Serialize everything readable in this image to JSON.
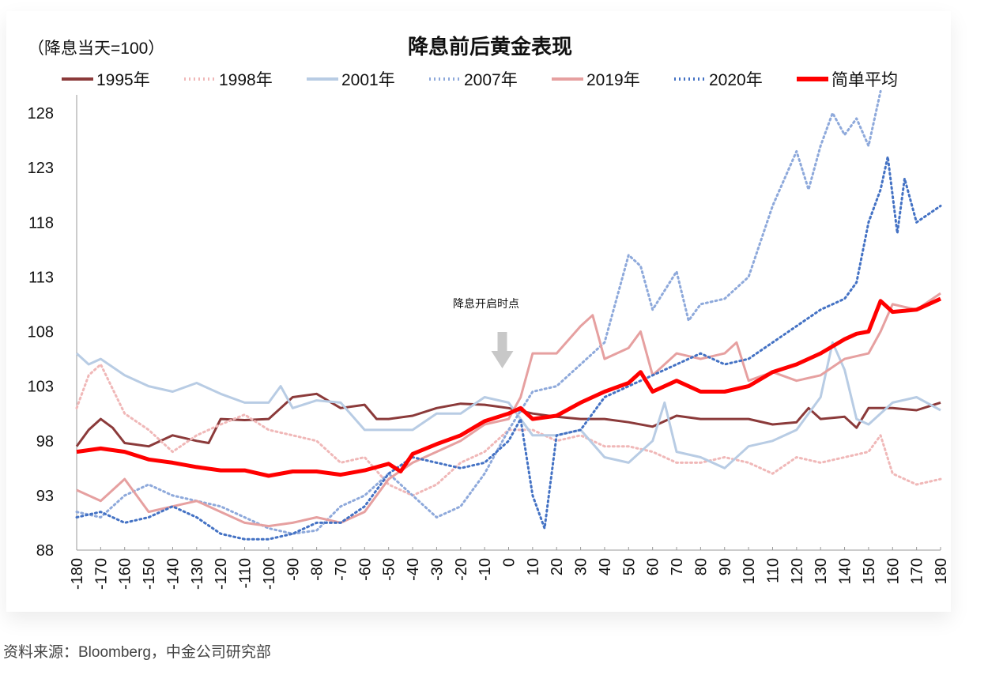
{
  "chart_data": {
    "type": "line",
    "title": "降息前后黄金表现",
    "unit_note": "（降息当天=100）",
    "annotation": "降息开启时点",
    "annotation_x": 0,
    "xlim": [
      -180,
      180
    ],
    "ylim": [
      88,
      130
    ],
    "x_ticks": [
      -180,
      -170,
      -160,
      -150,
      -140,
      -130,
      -120,
      -110,
      -100,
      -90,
      -80,
      -70,
      -60,
      -50,
      -40,
      -30,
      -20,
      -10,
      0,
      10,
      20,
      30,
      40,
      50,
      60,
      70,
      80,
      90,
      100,
      110,
      120,
      130,
      140,
      150,
      160,
      170,
      180
    ],
    "y_ticks": [
      88,
      93,
      98,
      103,
      108,
      113,
      118,
      123,
      128
    ],
    "grid": false,
    "legend_position": "top",
    "series": [
      {
        "name": "1995年",
        "color": "#8B3A3A",
        "style": "solid",
        "width": 3,
        "points": [
          [
            -180,
            97.5
          ],
          [
            -175,
            99
          ],
          [
            -170,
            100
          ],
          [
            -165,
            99.2
          ],
          [
            -160,
            97.8
          ],
          [
            -150,
            97.5
          ],
          [
            -140,
            98.5
          ],
          [
            -130,
            98
          ],
          [
            -125,
            97.8
          ],
          [
            -120,
            100
          ],
          [
            -110,
            99.9
          ],
          [
            -100,
            100
          ],
          [
            -95,
            101
          ],
          [
            -90,
            102
          ],
          [
            -80,
            102.3
          ],
          [
            -70,
            101
          ],
          [
            -60,
            101.3
          ],
          [
            -55,
            100
          ],
          [
            -50,
            100
          ],
          [
            -40,
            100.3
          ],
          [
            -30,
            101
          ],
          [
            -20,
            101.4
          ],
          [
            -10,
            101.3
          ],
          [
            0,
            101
          ],
          [
            10,
            100.5
          ],
          [
            20,
            100.2
          ],
          [
            30,
            100
          ],
          [
            40,
            100
          ],
          [
            50,
            99.7
          ],
          [
            60,
            99.3
          ],
          [
            70,
            100.3
          ],
          [
            80,
            100
          ],
          [
            90,
            100
          ],
          [
            100,
            100
          ],
          [
            110,
            99.5
          ],
          [
            120,
            99.7
          ],
          [
            125,
            101
          ],
          [
            130,
            100
          ],
          [
            140,
            100.2
          ],
          [
            145,
            99.2
          ],
          [
            150,
            101
          ],
          [
            160,
            101
          ],
          [
            170,
            100.8
          ],
          [
            180,
            101.5
          ]
        ]
      },
      {
        "name": "1998年",
        "color": "#F0B8B8",
        "style": "dotted",
        "width": 3,
        "points": [
          [
            -180,
            101
          ],
          [
            -175,
            104
          ],
          [
            -170,
            105
          ],
          [
            -160,
            100.5
          ],
          [
            -150,
            99
          ],
          [
            -140,
            97
          ],
          [
            -130,
            98.5
          ],
          [
            -120,
            99.5
          ],
          [
            -110,
            100.4
          ],
          [
            -100,
            99
          ],
          [
            -90,
            98.5
          ],
          [
            -80,
            98
          ],
          [
            -70,
            96
          ],
          [
            -60,
            96.5
          ],
          [
            -50,
            94
          ],
          [
            -40,
            93
          ],
          [
            -30,
            94
          ],
          [
            -20,
            96
          ],
          [
            -10,
            97
          ],
          [
            0,
            99
          ],
          [
            10,
            99
          ],
          [
            20,
            98
          ],
          [
            30,
            98.5
          ],
          [
            40,
            97.5
          ],
          [
            50,
            97.5
          ],
          [
            60,
            97
          ],
          [
            70,
            96
          ],
          [
            80,
            96
          ],
          [
            90,
            96.5
          ],
          [
            100,
            96
          ],
          [
            110,
            95
          ],
          [
            120,
            96.5
          ],
          [
            130,
            96
          ],
          [
            140,
            96.5
          ],
          [
            150,
            97
          ],
          [
            155,
            98.5
          ],
          [
            160,
            95
          ],
          [
            170,
            94
          ],
          [
            180,
            94.5
          ]
        ]
      },
      {
        "name": "2001年",
        "color": "#B8CCE4",
        "style": "solid",
        "width": 3,
        "points": [
          [
            -180,
            106
          ],
          [
            -175,
            105
          ],
          [
            -170,
            105.5
          ],
          [
            -160,
            104
          ],
          [
            -150,
            103
          ],
          [
            -140,
            102.5
          ],
          [
            -130,
            103.3
          ],
          [
            -120,
            102.3
          ],
          [
            -110,
            101.5
          ],
          [
            -100,
            101.5
          ],
          [
            -95,
            103
          ],
          [
            -90,
            101
          ],
          [
            -80,
            101.7
          ],
          [
            -70,
            101.5
          ],
          [
            -60,
            99
          ],
          [
            -50,
            99
          ],
          [
            -40,
            99
          ],
          [
            -30,
            100.5
          ],
          [
            -20,
            100.5
          ],
          [
            -10,
            102
          ],
          [
            0,
            101.5
          ],
          [
            10,
            98.5
          ],
          [
            20,
            98.5
          ],
          [
            30,
            99
          ],
          [
            40,
            96.5
          ],
          [
            50,
            96
          ],
          [
            60,
            98
          ],
          [
            65,
            101.5
          ],
          [
            70,
            97
          ],
          [
            80,
            96.5
          ],
          [
            90,
            95.5
          ],
          [
            100,
            97.5
          ],
          [
            110,
            98
          ],
          [
            120,
            99
          ],
          [
            130,
            102
          ],
          [
            135,
            107
          ],
          [
            140,
            104.5
          ],
          [
            145,
            100
          ],
          [
            150,
            99.5
          ],
          [
            160,
            101.5
          ],
          [
            170,
            102
          ],
          [
            180,
            100.8
          ]
        ]
      },
      {
        "name": "2007年",
        "color": "#8EA9DB",
        "style": "dotted",
        "width": 3,
        "points": [
          [
            -180,
            91.5
          ],
          [
            -170,
            91
          ],
          [
            -160,
            93
          ],
          [
            -150,
            94
          ],
          [
            -140,
            93
          ],
          [
            -130,
            92.5
          ],
          [
            -120,
            92
          ],
          [
            -110,
            91
          ],
          [
            -100,
            90
          ],
          [
            -90,
            89.5
          ],
          [
            -80,
            89.8
          ],
          [
            -70,
            92
          ],
          [
            -60,
            93
          ],
          [
            -50,
            95
          ],
          [
            -40,
            93
          ],
          [
            -30,
            91
          ],
          [
            -20,
            92
          ],
          [
            -10,
            95
          ],
          [
            0,
            99
          ],
          [
            10,
            102.5
          ],
          [
            20,
            103
          ],
          [
            30,
            105
          ],
          [
            40,
            107
          ],
          [
            50,
            115
          ],
          [
            55,
            114
          ],
          [
            60,
            110
          ],
          [
            70,
            113.5
          ],
          [
            75,
            109
          ],
          [
            80,
            110.5
          ],
          [
            90,
            111
          ],
          [
            100,
            113
          ],
          [
            110,
            119.5
          ],
          [
            120,
            124.5
          ],
          [
            125,
            121
          ],
          [
            130,
            125
          ],
          [
            135,
            128
          ],
          [
            140,
            126
          ],
          [
            145,
            127.5
          ],
          [
            150,
            125
          ],
          [
            155,
            130
          ]
        ]
      },
      {
        "name": "2019年",
        "color": "#E6A0A0",
        "style": "solid",
        "width": 3,
        "points": [
          [
            -180,
            93.5
          ],
          [
            -170,
            92.5
          ],
          [
            -160,
            94.5
          ],
          [
            -150,
            91.5
          ],
          [
            -140,
            92
          ],
          [
            -130,
            92.5
          ],
          [
            -120,
            91.5
          ],
          [
            -110,
            90.5
          ],
          [
            -100,
            90.2
          ],
          [
            -90,
            90.5
          ],
          [
            -80,
            91
          ],
          [
            -70,
            90.5
          ],
          [
            -60,
            91.5
          ],
          [
            -50,
            94.5
          ],
          [
            -40,
            96
          ],
          [
            -30,
            97
          ],
          [
            -20,
            98
          ],
          [
            -10,
            99.5
          ],
          [
            0,
            100
          ],
          [
            5,
            102
          ],
          [
            10,
            106
          ],
          [
            20,
            106
          ],
          [
            30,
            108.5
          ],
          [
            35,
            109.5
          ],
          [
            40,
            105.5
          ],
          [
            50,
            106.5
          ],
          [
            55,
            108
          ],
          [
            60,
            104
          ],
          [
            70,
            106
          ],
          [
            80,
            105.5
          ],
          [
            90,
            106
          ],
          [
            95,
            107
          ],
          [
            100,
            103.5
          ],
          [
            110,
            104.3
          ],
          [
            120,
            103.5
          ],
          [
            130,
            104
          ],
          [
            140,
            105.5
          ],
          [
            150,
            106
          ],
          [
            155,
            108
          ],
          [
            160,
            110.5
          ],
          [
            170,
            110
          ],
          [
            180,
            111.5
          ]
        ]
      },
      {
        "name": "2020年",
        "color": "#4472C4",
        "style": "dotted",
        "width": 3,
        "points": [
          [
            -180,
            91
          ],
          [
            -170,
            91.5
          ],
          [
            -160,
            90.5
          ],
          [
            -150,
            91
          ],
          [
            -140,
            92
          ],
          [
            -130,
            91
          ],
          [
            -120,
            89.5
          ],
          [
            -110,
            89
          ],
          [
            -100,
            89
          ],
          [
            -90,
            89.5
          ],
          [
            -80,
            90.5
          ],
          [
            -70,
            90.5
          ],
          [
            -60,
            92
          ],
          [
            -50,
            95
          ],
          [
            -40,
            96.5
          ],
          [
            -30,
            96
          ],
          [
            -20,
            95.5
          ],
          [
            -10,
            96
          ],
          [
            0,
            98
          ],
          [
            5,
            100
          ],
          [
            10,
            93
          ],
          [
            15,
            90
          ],
          [
            20,
            98.5
          ],
          [
            30,
            99
          ],
          [
            40,
            102
          ],
          [
            50,
            103
          ],
          [
            60,
            104
          ],
          [
            70,
            105
          ],
          [
            80,
            106
          ],
          [
            90,
            105
          ],
          [
            100,
            105.5
          ],
          [
            110,
            107
          ],
          [
            120,
            108.5
          ],
          [
            130,
            110
          ],
          [
            140,
            111
          ],
          [
            145,
            112.5
          ],
          [
            150,
            118
          ],
          [
            155,
            121
          ],
          [
            158,
            124
          ],
          [
            162,
            117
          ],
          [
            165,
            122
          ],
          [
            170,
            118
          ],
          [
            180,
            119.5
          ]
        ]
      },
      {
        "name": "简单平均",
        "color": "#FF0000",
        "style": "solid",
        "width": 5,
        "points": [
          [
            -180,
            97
          ],
          [
            -170,
            97.3
          ],
          [
            -160,
            97
          ],
          [
            -150,
            96.3
          ],
          [
            -140,
            96
          ],
          [
            -130,
            95.6
          ],
          [
            -120,
            95.3
          ],
          [
            -110,
            95.3
          ],
          [
            -100,
            94.8
          ],
          [
            -90,
            95.2
          ],
          [
            -80,
            95.2
          ],
          [
            -70,
            94.9
          ],
          [
            -60,
            95.3
          ],
          [
            -50,
            95.9
          ],
          [
            -45,
            95.2
          ],
          [
            -40,
            96.8
          ],
          [
            -30,
            97.7
          ],
          [
            -20,
            98.5
          ],
          [
            -10,
            99.8
          ],
          [
            0,
            100.5
          ],
          [
            5,
            101
          ],
          [
            10,
            100
          ],
          [
            20,
            100.3
          ],
          [
            30,
            101.5
          ],
          [
            40,
            102.5
          ],
          [
            50,
            103.3
          ],
          [
            55,
            104.3
          ],
          [
            60,
            102.5
          ],
          [
            70,
            103.5
          ],
          [
            80,
            102.5
          ],
          [
            90,
            102.5
          ],
          [
            100,
            103
          ],
          [
            110,
            104.3
          ],
          [
            120,
            105
          ],
          [
            130,
            106
          ],
          [
            140,
            107.3
          ],
          [
            145,
            107.8
          ],
          [
            150,
            108
          ],
          [
            155,
            110.8
          ],
          [
            160,
            109.8
          ],
          [
            170,
            110
          ],
          [
            180,
            111
          ]
        ]
      }
    ]
  },
  "source": "资料来源：Bloomberg，中金公司研究部"
}
